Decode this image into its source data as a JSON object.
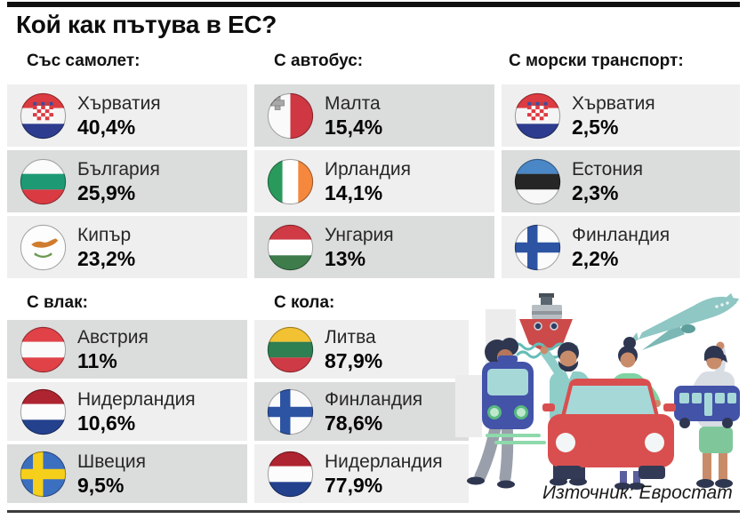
{
  "title": "Кой как пътува в ЕС?",
  "source_label": "Източник: Евростат",
  "sections": [
    {
      "id": "plane",
      "header": "Със самолет:",
      "entries": [
        {
          "country": "Хърватия",
          "value": "40,4%",
          "flag": "croatia"
        },
        {
          "country": "България",
          "value": "25,9%",
          "flag": "bulgaria"
        },
        {
          "country": "Кипър",
          "value": "23,2%",
          "flag": "cyprus"
        }
      ]
    },
    {
      "id": "bus",
      "header": "С автобус:",
      "entries": [
        {
          "country": "Малта",
          "value": "15,4%",
          "flag": "malta"
        },
        {
          "country": "Ирландия",
          "value": "14,1%",
          "flag": "ireland"
        },
        {
          "country": "Унгария",
          "value": "13%",
          "flag": "hungary"
        }
      ]
    },
    {
      "id": "sea",
      "header": "С морски транспорт:",
      "entries": [
        {
          "country": "Хърватия",
          "value": "2,5%",
          "flag": "croatia"
        },
        {
          "country": "Естония",
          "value": "2,3%",
          "flag": "estonia"
        },
        {
          "country": "Финландия",
          "value": "2,2%",
          "flag": "finland"
        }
      ]
    },
    {
      "id": "train",
      "header": "С влак:",
      "entries": [
        {
          "country": "Австрия",
          "value": "11%",
          "flag": "austria"
        },
        {
          "country": "Нидерландия",
          "value": "10,6%",
          "flag": "netherlands"
        },
        {
          "country": "Швеция",
          "value": "9,5%",
          "flag": "sweden"
        }
      ]
    },
    {
      "id": "car",
      "header": "С кола:",
      "entries": [
        {
          "country": "Литва",
          "value": "87,9%",
          "flag": "lithuania"
        },
        {
          "country": "Финландия",
          "value": "78,6%",
          "flag": "finland"
        },
        {
          "country": "Нидерландия",
          "value": "77,9%",
          "flag": "netherlands"
        }
      ]
    }
  ],
  "chart_data": {
    "type": "table",
    "title": "Кой как пътува в ЕС?",
    "unit": "%",
    "series": [
      {
        "name": "Със самолет",
        "categories": [
          "Хърватия",
          "България",
          "Кипър"
        ],
        "values": [
          40.4,
          25.9,
          23.2
        ]
      },
      {
        "name": "С автобус",
        "categories": [
          "Малта",
          "Ирландия",
          "Унгария"
        ],
        "values": [
          15.4,
          14.1,
          13
        ]
      },
      {
        "name": "С морски транспорт",
        "categories": [
          "Хърватия",
          "Естония",
          "Финландия"
        ],
        "values": [
          2.5,
          2.3,
          2.2
        ]
      },
      {
        "name": "С влак",
        "categories": [
          "Австрия",
          "Нидерландия",
          "Швеция"
        ],
        "values": [
          11,
          10.6,
          9.5
        ]
      },
      {
        "name": "С кола",
        "categories": [
          "Литва",
          "Финландия",
          "Нидерландия"
        ],
        "values": [
          87.9,
          78.6,
          77.9
        ]
      }
    ],
    "source": "Евростат"
  },
  "illustration_icons": [
    "ship-icon",
    "airplane-icon",
    "train-icon",
    "car-icon",
    "bus-icon"
  ],
  "colors": {
    "row_light": "#efefef",
    "row_dark": "#dbdcdc",
    "bar_black": "#101010",
    "bar_gray": "#3c3c3c"
  }
}
